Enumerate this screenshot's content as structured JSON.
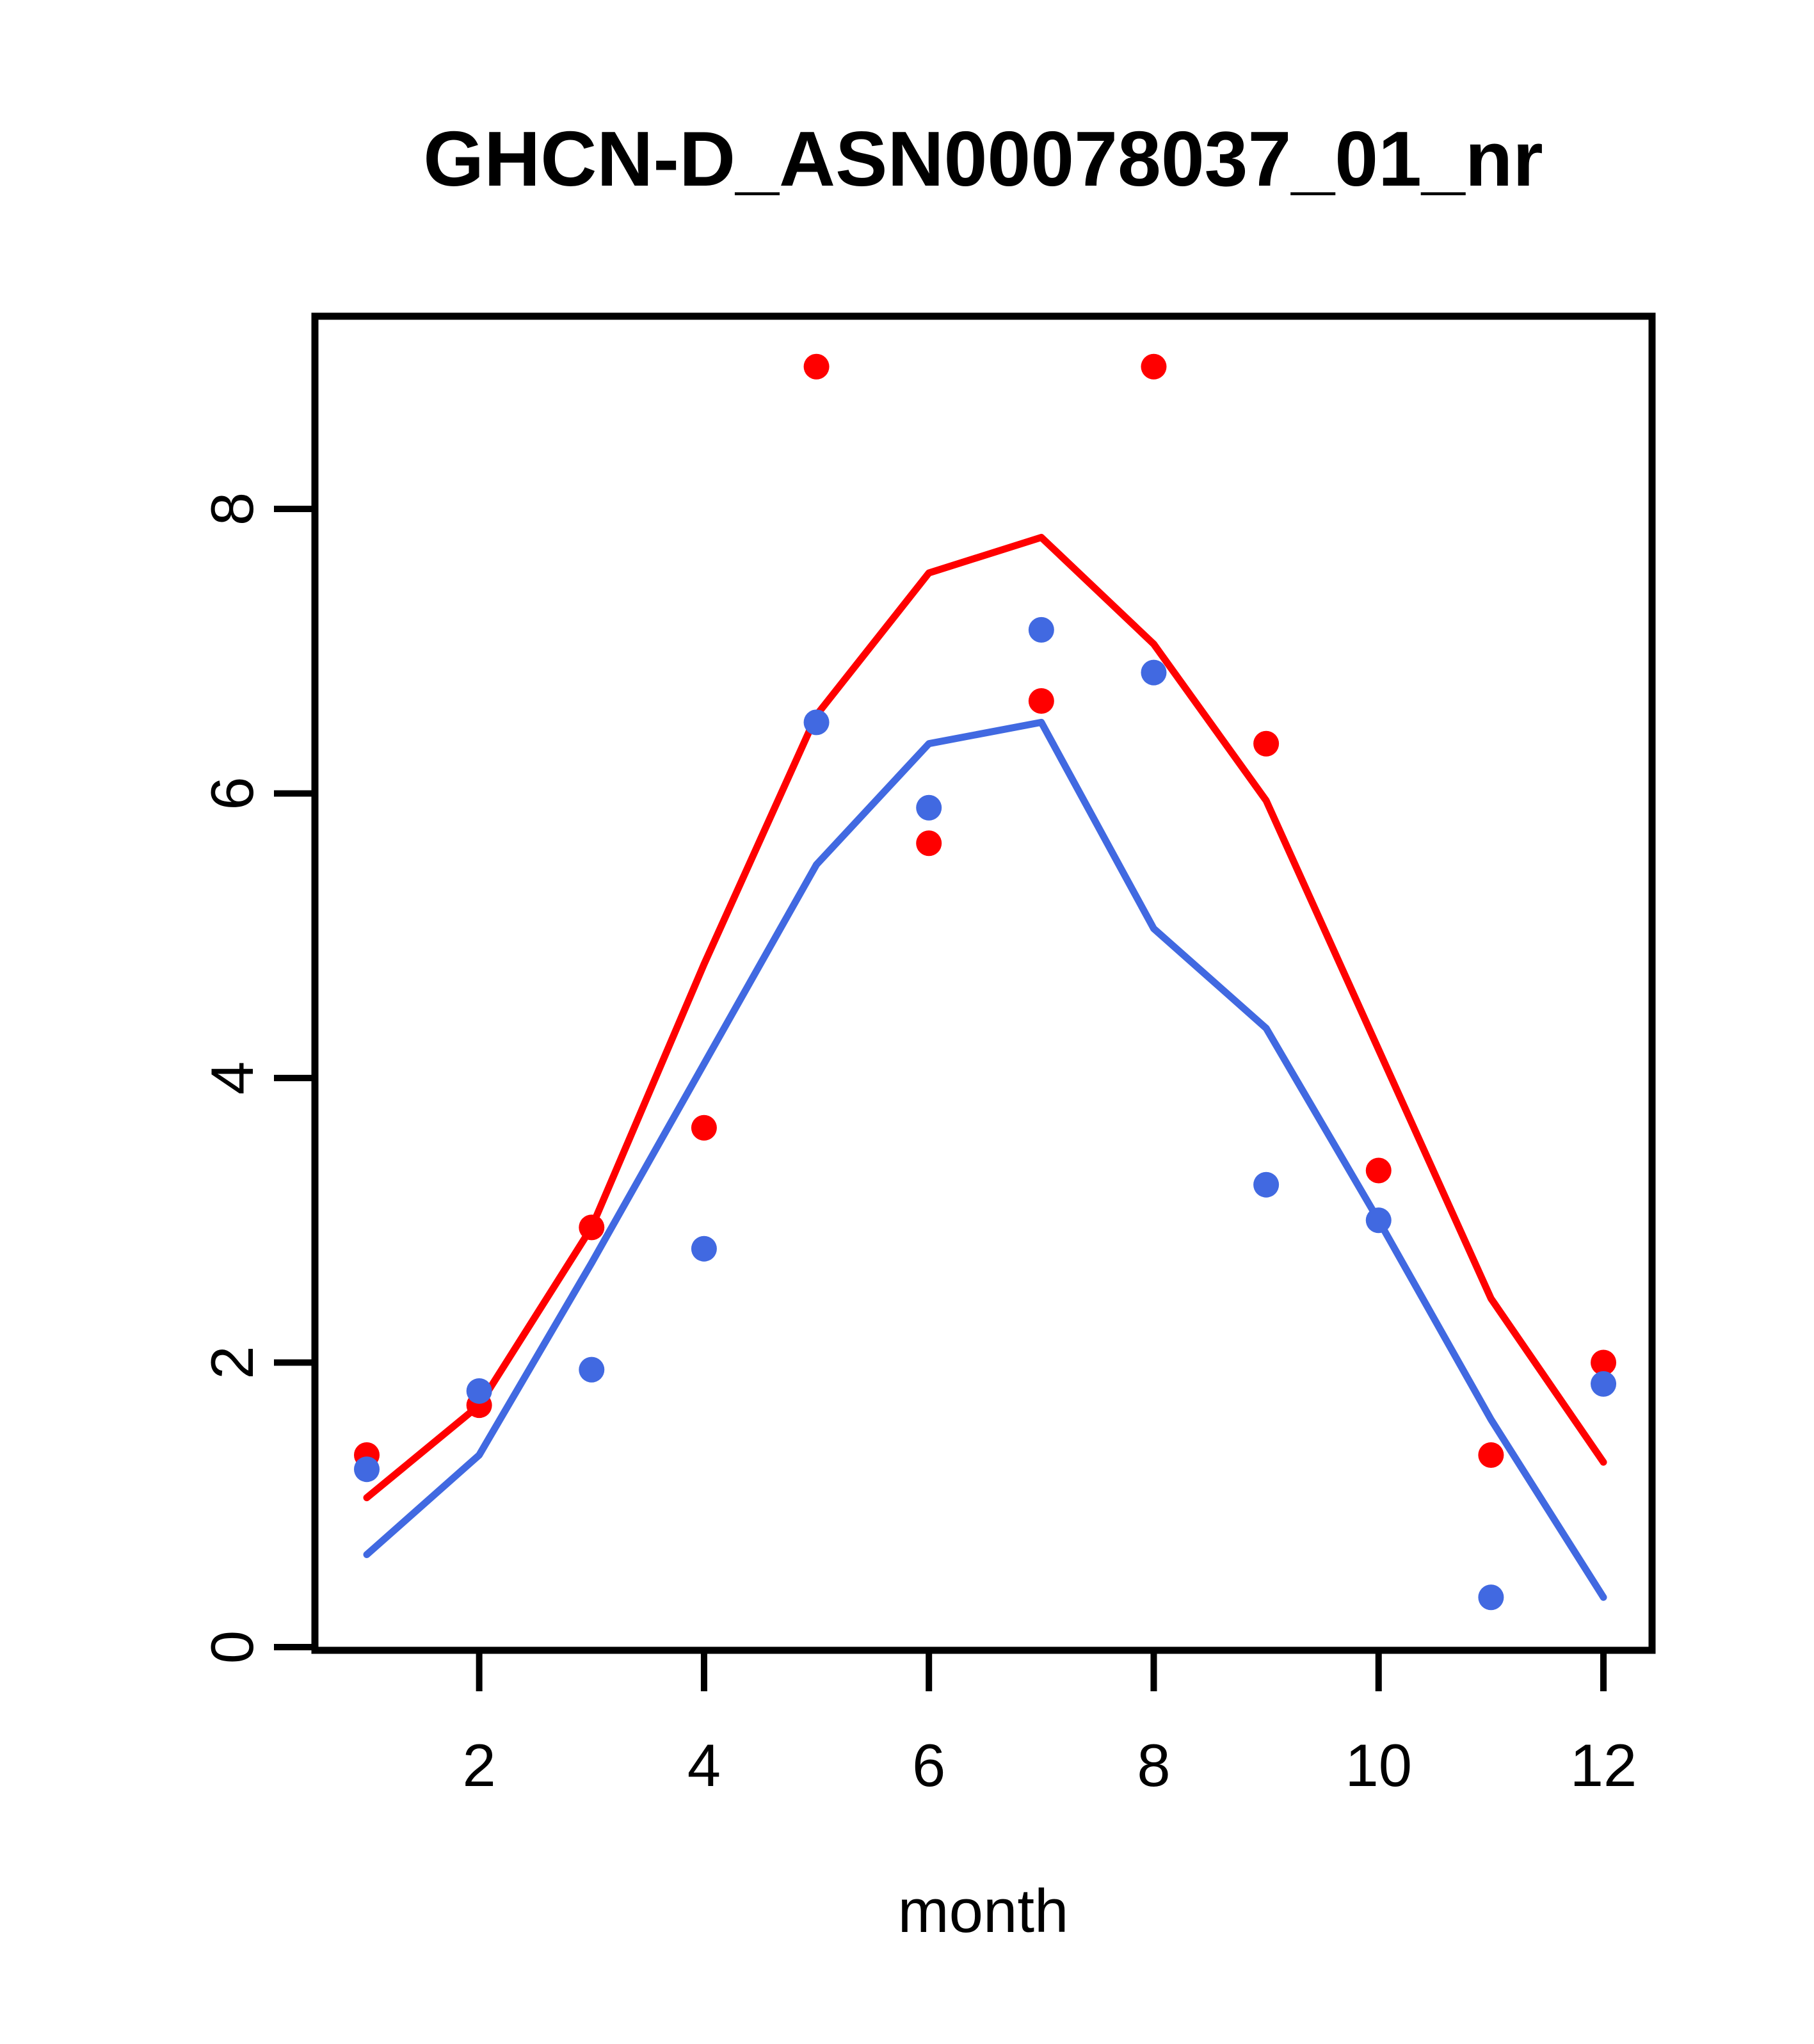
{
  "title": "GHCN-D_ASN00078037_01_nr",
  "xlabel": "month",
  "colors": {
    "red_series": "#FF0000",
    "blue_series": "#4169E1",
    "frame": "#000000",
    "background": "#FFFFFF"
  },
  "chart_data": {
    "type": "line",
    "subtype": "line-and-scatter",
    "title": "GHCN-D_ASN00078037_01_nr",
    "xlabel": "month",
    "ylabel": "",
    "x": [
      1,
      2,
      3,
      4,
      5,
      6,
      7,
      8,
      9,
      10,
      11,
      12
    ],
    "x_ticks": [
      2,
      4,
      6,
      8,
      10,
      12
    ],
    "y_ticks": [
      0,
      2,
      4,
      6,
      8
    ],
    "xlim": [
      0.55,
      12.45
    ],
    "ylim": [
      -0.02,
      9.36
    ],
    "grid": false,
    "legend": "none",
    "series": [
      {
        "name": "red-line",
        "kind": "line",
        "color": "#FF0000",
        "values": [
          1.05,
          1.7,
          2.95,
          4.8,
          6.55,
          7.55,
          7.8,
          7.05,
          5.95,
          4.2,
          2.45,
          1.3
        ]
      },
      {
        "name": "blue-line",
        "kind": "line",
        "color": "#4169E1",
        "values": [
          0.65,
          1.35,
          2.7,
          4.1,
          5.5,
          6.35,
          6.5,
          5.05,
          4.35,
          3.0,
          1.6,
          0.35
        ]
      },
      {
        "name": "red-points",
        "kind": "scatter",
        "color": "#FF0000",
        "values": [
          1.35,
          1.7,
          2.95,
          3.65,
          9.0,
          5.65,
          6.65,
          9.0,
          6.35,
          3.35,
          1.35,
          2.0
        ]
      },
      {
        "name": "blue-points",
        "kind": "scatter",
        "color": "#4169E1",
        "values": [
          1.25,
          1.8,
          1.95,
          2.8,
          6.5,
          5.9,
          7.15,
          6.85,
          3.25,
          3.0,
          0.35,
          1.85
        ]
      }
    ]
  }
}
